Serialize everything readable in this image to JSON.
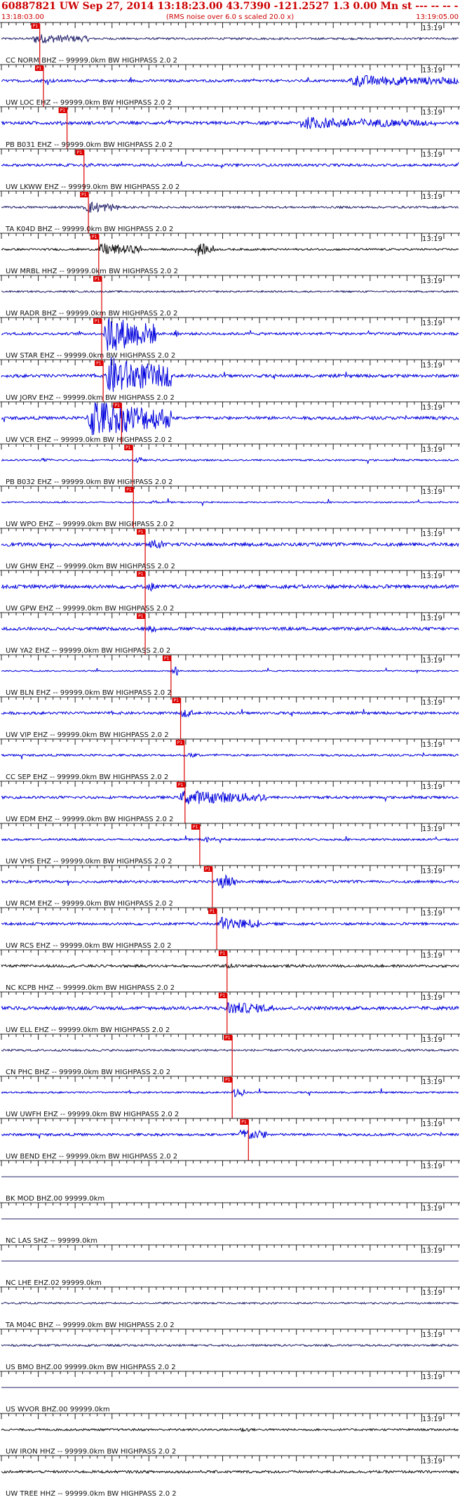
{
  "header": {
    "title": "60887821 UW Sep 27, 2014 13:18:23.00   43.7390 -121.2527  1.3 0.00 Mn st --- -- --   -1",
    "start_time": "13:18:03.00",
    "note": "(RMS noise over 6.0 s scaled 20.0 x)",
    "end_time": "13:19:05.00"
  },
  "chart_data": {
    "type": "line",
    "title": "60887821 UW Sep 27, 2014 13:18:23.00   43.7390 -121.2527  1.3 0.00 Mn st --- -- --   -1",
    "x_range_seconds": [
      0,
      62
    ],
    "minute_mark": "13:19",
    "minute_mark_offset_s": 57,
    "pick_label": "P1",
    "colors": {
      "trace_blue": "#0000dd",
      "trace_black": "#111111",
      "trace_navy": "#20206a",
      "pick": "#dd0000",
      "header": "#cc0000"
    },
    "traces": [
      {
        "label": "CC NORM BHZ -- 99999.0km BW  HIGHPASS  2.0  2",
        "color": "navy",
        "pick_s": 5.2,
        "amp": 0.12,
        "bursts": [
          [
            4,
            12,
            0.7
          ]
        ]
      },
      {
        "label": "UW LOC EHZ -- 99999.0km BW  HIGHPASS  2.0  2",
        "color": "blue",
        "pick_s": 5.7,
        "amp": 0.15,
        "bursts": [
          [
            5,
            8,
            0.35
          ],
          [
            47,
            62,
            0.8
          ]
        ]
      },
      {
        "label": "PB B031 EHZ -- 99999.0km BW  HIGHPASS  2.0  2",
        "color": "blue",
        "pick_s": 8.9,
        "amp": 0.18,
        "bursts": [
          [
            40,
            58,
            0.8
          ]
        ]
      },
      {
        "label": "UW LKWW EHZ -- 99999.0km BW  HIGHPASS  2.0  2",
        "color": "blue",
        "pick_s": 11.2,
        "amp": 0.15,
        "bursts": [
          [
            11,
            14,
            0.3
          ]
        ]
      },
      {
        "label": "TA K04D BHZ -- 99999.0km BW  HIGHPASS  2.0  2",
        "color": "navy",
        "pick_s": 11.8,
        "amp": 0.12,
        "bursts": [
          [
            11,
            16,
            0.9
          ]
        ]
      },
      {
        "label": "UW MRBL HHZ -- 99999.0km BW  HIGHPASS  2.0  2",
        "color": "black",
        "pick_s": 13.2,
        "amp": 0.12,
        "bursts": [
          [
            13,
            19,
            0.9
          ],
          [
            26,
            29,
            1.0
          ]
        ]
      },
      {
        "label": "UW RADR BHZ -- 99999.0km BW  HIGHPASS  2.0  2",
        "color": "navy",
        "pick_s": 13.6,
        "amp": 0.1,
        "bursts": []
      },
      {
        "label": "UW STAR EHZ -- 99999.0km BW  HIGHPASS  2.0  2",
        "color": "blue",
        "pick_s": 13.6,
        "amp": 0.15,
        "bursts": [
          [
            13.8,
            21,
            2.6
          ],
          [
            23,
            24,
            0.6
          ]
        ]
      },
      {
        "label": "UW JORV EHZ -- 99999.0km BW  HIGHPASS  2.0  2",
        "color": "blue",
        "pick_s": 13.8,
        "amp": 0.18,
        "bursts": [
          [
            14,
            23,
            2.6
          ]
        ]
      },
      {
        "label": "UW VCR EHZ -- 99999.0km BW  HIGHPASS  2.0  2",
        "color": "blue",
        "pick_s": 16.3,
        "amp": 0.18,
        "bursts": [
          [
            11.5,
            23,
            2.6
          ]
        ]
      },
      {
        "label": "PB B032 EHZ -- 99999.0km BW  HIGHPASS  2.0  2",
        "color": "blue",
        "pick_s": 17.8,
        "amp": 0.1,
        "bursts": [
          [
            5,
            7,
            0.3
          ],
          [
            17.8,
            19,
            0.5
          ]
        ]
      },
      {
        "label": "UW WPO EHZ -- 99999.0km BW  HIGHPASS  2.0  2",
        "color": "blue",
        "pick_s": 17.9,
        "amp": 0.08,
        "bursts": [
          [
            20,
            21,
            0.3
          ]
        ]
      },
      {
        "label": "UW GHW EHZ -- 99999.0km BW  HIGHPASS  2.0  2",
        "color": "blue",
        "pick_s": 19.5,
        "amp": 0.2,
        "bursts": [
          [
            19.5,
            22,
            0.9
          ]
        ]
      },
      {
        "label": "UW GPW EHZ -- 99999.0km BW  HIGHPASS  2.0  2",
        "color": "blue",
        "pick_s": 19.5,
        "amp": 0.22,
        "bursts": [
          [
            19.5,
            21,
            0.8
          ]
        ]
      },
      {
        "label": "UW YA2 EHZ -- 99999.0km BW  HIGHPASS  2.0  2",
        "color": "blue",
        "pick_s": 19.5,
        "amp": 0.18,
        "bursts": [
          [
            19.5,
            21,
            0.6
          ]
        ]
      },
      {
        "label": "UW BLN EHZ -- 99999.0km BW  HIGHPASS  2.0  2",
        "color": "blue",
        "pick_s": 23.0,
        "amp": 0.08,
        "bursts": [
          [
            23,
            24,
            0.8
          ]
        ]
      },
      {
        "label": "UW VIP EHZ -- 99999.0km BW  HIGHPASS  2.0  2",
        "color": "blue",
        "pick_s": 24.3,
        "amp": 0.15,
        "bursts": [
          [
            24,
            26,
            0.7
          ]
        ]
      },
      {
        "label": "CC SEP EHZ -- 99999.0km BW  HIGHPASS  2.0  2",
        "color": "blue",
        "pick_s": 24.8,
        "amp": 0.12,
        "bursts": [
          [
            25,
            27,
            0.4
          ]
        ]
      },
      {
        "label": "UW EDM EHZ -- 99999.0km BW  HIGHPASS  2.0  2",
        "color": "blue",
        "pick_s": 24.9,
        "amp": 0.15,
        "bursts": [
          [
            24,
            36,
            1.0
          ]
        ]
      },
      {
        "label": "UW VHS EHZ -- 99999.0km BW  HIGHPASS  2.0  2",
        "color": "blue",
        "pick_s": 26.9,
        "amp": 0.12,
        "bursts": [
          [
            27,
            29,
            0.5
          ]
        ]
      },
      {
        "label": "UW RCM EHZ -- 99999.0km BW  HIGHPASS  2.0  2",
        "color": "blue",
        "pick_s": 28.6,
        "amp": 0.15,
        "bursts": [
          [
            29,
            32,
            1.2
          ]
        ]
      },
      {
        "label": "UW RCS EHZ -- 99999.0km BW  HIGHPASS  2.0  2",
        "color": "blue",
        "pick_s": 29.2,
        "amp": 0.15,
        "bursts": [
          [
            29,
            35,
            1.0
          ]
        ]
      },
      {
        "label": "NC KCPB HHZ -- 99999.0km BW  HIGHPASS  2.0  2",
        "color": "black",
        "pick_s": 30.6,
        "amp": 0.15,
        "bursts": [
          [
            30,
            32,
            0.4
          ]
        ]
      },
      {
        "label": "UW ELL EHZ -- 99999.0km BW  HIGHPASS  2.0  2",
        "color": "blue",
        "pick_s": 30.6,
        "amp": 0.2,
        "bursts": [
          [
            30,
            37,
            0.9
          ]
        ]
      },
      {
        "label": "CN PHC BHZ -- 99999.0km BW  HIGHPASS  2.0  2",
        "color": "navy",
        "pick_s": 31.3,
        "amp": 0.12,
        "bursts": []
      },
      {
        "label": "UW UWFH EHZ -- 99999.0km BW  HIGHPASS  2.0  2",
        "color": "blue",
        "pick_s": 31.3,
        "amp": 0.1,
        "bursts": [
          [
            31,
            33,
            0.8
          ]
        ]
      },
      {
        "label": "UW BEND EHZ -- 99999.0km BW  HIGHPASS  2.0  2",
        "color": "blue",
        "pick_s": 33.5,
        "amp": 0.15,
        "bursts": [
          [
            32,
            36,
            0.9
          ]
        ]
      },
      {
        "label": "BK MOD BHZ.00 99999.0km",
        "color": "navy",
        "pick_s": null,
        "amp": 0.0,
        "bursts": []
      },
      {
        "label": "NC LAS SHZ -- 99999.0km",
        "color": "navy",
        "pick_s": null,
        "amp": 0.0,
        "bursts": []
      },
      {
        "label": "NC LHE EHZ.02 99999.0km",
        "color": "navy",
        "pick_s": null,
        "amp": 0.0,
        "bursts": []
      },
      {
        "label": "TA M04C BHZ -- 99999.0km BW  HIGHPASS  2.0  2",
        "color": "navy",
        "pick_s": null,
        "amp": 0.1,
        "bursts": []
      },
      {
        "label": "US BMO BHZ.00 99999.0km BW  HIGHPASS  2.0  2",
        "color": "navy",
        "pick_s": null,
        "amp": 0.12,
        "bursts": []
      },
      {
        "label": "US WVOR BHZ.00 99999.0km",
        "color": "navy",
        "pick_s": null,
        "amp": 0.0,
        "bursts": []
      },
      {
        "label": "UW IRON HHZ -- 99999.0km BW  HIGHPASS  2.0  2",
        "color": "black",
        "pick_s": null,
        "amp": 0.12,
        "bursts": [
          [
            32,
            34,
            0.4
          ]
        ]
      },
      {
        "label": "UW TREE HHZ -- 99999.0km BW  HIGHPASS  2.0  2",
        "color": "black",
        "pick_s": null,
        "amp": 0.15,
        "bursts": []
      }
    ]
  }
}
